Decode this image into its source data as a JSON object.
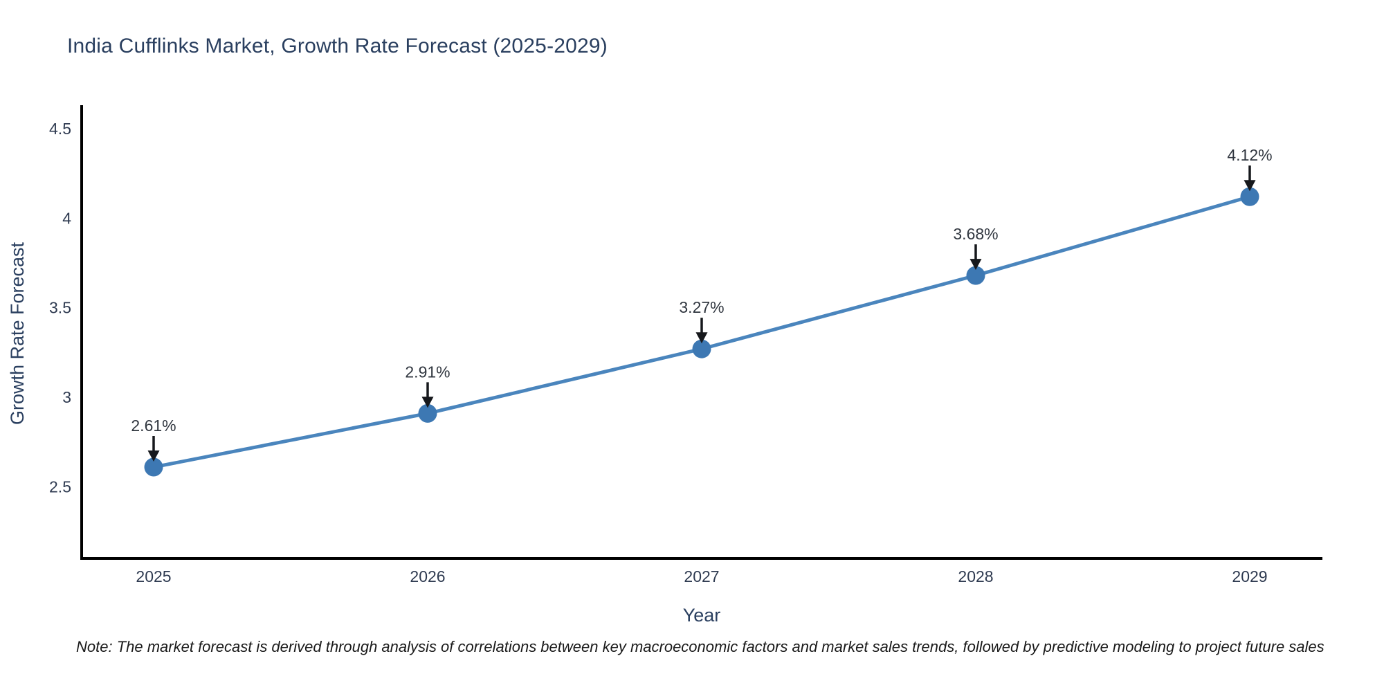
{
  "title": "India Cufflinks Market, Growth Rate Forecast (2025-2029)",
  "note": "Note: The market forecast is derived through analysis of correlations between key macroeconomic factors and market sales trends, followed by predictive modeling to project future sales",
  "colors": {
    "background": "#ffffff",
    "title_text": "#2a3f5f",
    "tick_text": "#2e3a50",
    "axis_line": "#000000",
    "series_line": "#4a85bd",
    "marker_fill": "#3d78b3",
    "annotation_text": "#30363f",
    "arrow": "#16181c"
  },
  "chart_data": {
    "type": "line",
    "title": "India Cufflinks Market, Growth Rate Forecast (2025-2029)",
    "xlabel": "Year",
    "ylabel": "Growth Rate Forecast",
    "x": [
      2025,
      2026,
      2027,
      2028,
      2029
    ],
    "y": [
      2.61,
      2.91,
      3.27,
      3.68,
      4.12
    ],
    "point_labels": [
      "2.61%",
      "2.91%",
      "3.27%",
      "3.68%",
      "4.12%"
    ],
    "x_tick_labels": [
      "2025",
      "2026",
      "2027",
      "2028",
      "2029"
    ],
    "y_tick_values": [
      2.5,
      3,
      3.5,
      4,
      4.5
    ],
    "y_tick_labels": [
      "2.5",
      "3",
      "3.5",
      "4",
      "4.5"
    ],
    "xlim": [
      2024.74,
      2029.27
    ],
    "ylim": [
      2.1,
      4.6
    ],
    "grid": false,
    "legend": "none",
    "markers": true,
    "annotations_arrows": true
  }
}
